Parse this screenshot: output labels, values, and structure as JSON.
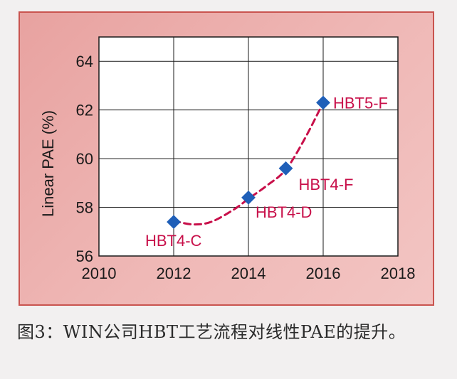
{
  "chart_data": {
    "type": "scatter",
    "title": "",
    "xlabel": "",
    "ylabel": "Linear PAE (%)",
    "xlim": [
      2010,
      2018
    ],
    "ylim": [
      56,
      65
    ],
    "xticks": [
      2010,
      2012,
      2014,
      2016,
      2018
    ],
    "yticks": [
      56,
      58,
      60,
      62,
      64
    ],
    "grid": true,
    "series": [
      {
        "points": [
          {
            "x": 2012,
            "y": 57.4,
            "label": "HBT4-C"
          },
          {
            "x": 2014,
            "y": 58.4,
            "label": "HBT4-D"
          },
          {
            "x": 2015,
            "y": 59.6,
            "label": "HBT4-F"
          },
          {
            "x": 2016,
            "y": 62.3,
            "label": "HBT5-F"
          }
        ],
        "marker_color": "#1f5fb8",
        "label_color": "#c8104a"
      }
    ],
    "trendline": {
      "style": "dashed",
      "color": "#c8104a",
      "points": [
        {
          "x": 2012,
          "y": 57.45
        },
        {
          "x": 2012.5,
          "y": 57.3
        },
        {
          "x": 2013,
          "y": 57.4
        },
        {
          "x": 2013.6,
          "y": 57.9
        },
        {
          "x": 2014,
          "y": 58.35
        },
        {
          "x": 2014.5,
          "y": 58.9
        },
        {
          "x": 2015,
          "y": 59.55
        },
        {
          "x": 2015.5,
          "y": 60.8
        },
        {
          "x": 2016,
          "y": 62.3
        }
      ]
    }
  },
  "caption": "图3：WIN公司HBT工艺流程对线性PAE的提升。",
  "colors": {
    "panel_border": "#c9544f",
    "plot_background": "#ffffff",
    "gridline": "#1a1a1a"
  }
}
